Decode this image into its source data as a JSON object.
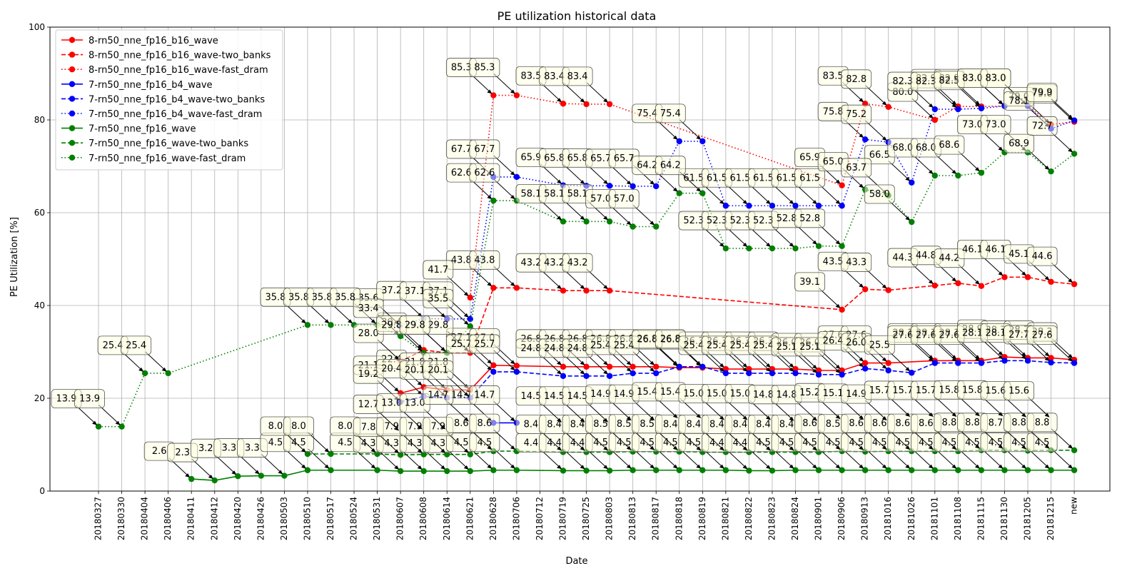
{
  "chart_data": {
    "type": "line",
    "title": "PE utilization historical data",
    "xlabel": "Date",
    "ylabel": "PE Utilization [%]",
    "ylim": [
      0,
      100
    ],
    "yticks": [
      0,
      20,
      40,
      60,
      80,
      100
    ],
    "grid": true,
    "legend_position": "top-left",
    "categories": [
      "20180327",
      "20180330",
      "20180404",
      "20180406",
      "20180411",
      "20180412",
      "20180420",
      "20180426",
      "20180503",
      "20180510",
      "20180517",
      "20180524",
      "20180531",
      "20180607",
      "20180608",
      "20180614",
      "20180621",
      "20180628",
      "20180706",
      "20180712",
      "20180719",
      "20180725",
      "20180803",
      "20180813",
      "20180817",
      "20180818",
      "20180819",
      "20180821",
      "20180822",
      "20180823",
      "20180824",
      "20180901",
      "20180906",
      "20180913",
      "20181016",
      "20181026",
      "20181101",
      "20181108",
      "20181115",
      "20181130",
      "20181205",
      "20181215",
      "new"
    ],
    "series": [
      {
        "name": "8-rn50_nne_fp16_b16_wave",
        "color": "#ff0000",
        "dash": "solid",
        "points": [
          [
            13,
            21.1
          ],
          [
            14,
            22.4
          ],
          [
            15,
            21.8
          ],
          [
            16,
            21.8
          ],
          [
            17,
            27.1
          ],
          [
            18,
            27.0
          ],
          [
            20,
            26.8
          ],
          [
            21,
            26.8
          ],
          [
            22,
            26.8
          ],
          [
            23,
            26.8
          ],
          [
            24,
            26.8
          ],
          [
            25,
            26.6
          ],
          [
            26,
            26.6
          ],
          [
            27,
            26.3
          ],
          [
            28,
            26.3
          ],
          [
            29,
            26.3
          ],
          [
            30,
            26.3
          ],
          [
            31,
            26.0
          ],
          [
            32,
            26.0
          ],
          [
            33,
            27.6
          ],
          [
            34,
            27.6
          ],
          [
            36,
            28.1
          ],
          [
            37,
            28.1
          ],
          [
            38,
            28.1
          ],
          [
            39,
            28.9
          ],
          [
            40,
            28.7
          ],
          [
            41,
            28.7
          ],
          [
            42,
            28.3
          ]
        ]
      },
      {
        "name": "8-rn50_nne_fp16_b16_wave-two_banks",
        "color": "#ff0000",
        "dash": "dashed",
        "points": [
          [
            13,
            28.0
          ],
          [
            14,
            30.4
          ],
          [
            15,
            29.8
          ],
          [
            16,
            29.8
          ],
          [
            17,
            43.8
          ],
          [
            18,
            43.8
          ],
          [
            20,
            43.2
          ],
          [
            21,
            43.2
          ],
          [
            22,
            43.2
          ],
          [
            32,
            39.1
          ],
          [
            33,
            43.5
          ],
          [
            34,
            43.3
          ],
          [
            36,
            44.3
          ],
          [
            37,
            44.8
          ],
          [
            38,
            44.2
          ],
          [
            39,
            46.1
          ],
          [
            40,
            46.1
          ],
          [
            41,
            45.1
          ],
          [
            42,
            44.6
          ]
        ]
      },
      {
        "name": "8-rn50_nne_fp16_b16_wave-fast_dram",
        "color": "#ff0000",
        "dash": "dotted",
        "points": [
          [
            16,
            41.7
          ],
          [
            17,
            85.3
          ],
          [
            18,
            85.3
          ],
          [
            20,
            83.5
          ],
          [
            21,
            83.4
          ],
          [
            22,
            83.4
          ],
          [
            32,
            65.9
          ],
          [
            33,
            83.5
          ],
          [
            34,
            82.8
          ],
          [
            36,
            80.0
          ],
          [
            37,
            82.9
          ],
          [
            38,
            82.9
          ],
          [
            39,
            83.0
          ],
          [
            40,
            83.0
          ],
          [
            41,
            79.0
          ],
          [
            42,
            79.6
          ]
        ]
      },
      {
        "name": "7-rn50_nne_fp16_b4_wave",
        "color": "#0000ff",
        "dash": "solid",
        "points": [
          [
            17,
            14.7
          ],
          [
            18,
            14.7
          ]
        ]
      },
      {
        "name": "7-rn50_nne_fp16_b4_wave-two_banks",
        "color": "#0000ff",
        "dash": "dashed",
        "points": [
          [
            13,
            19.2
          ],
          [
            14,
            20.4
          ],
          [
            15,
            20.1
          ],
          [
            16,
            20.1
          ],
          [
            17,
            25.7
          ],
          [
            18,
            25.7
          ],
          [
            20,
            24.8
          ],
          [
            21,
            24.8
          ],
          [
            22,
            24.8
          ],
          [
            23,
            25.4
          ],
          [
            24,
            25.4
          ],
          [
            25,
            26.8
          ],
          [
            26,
            26.8
          ],
          [
            27,
            25.4
          ],
          [
            28,
            25.4
          ],
          [
            29,
            25.4
          ],
          [
            30,
            25.4
          ],
          [
            31,
            25.1
          ],
          [
            32,
            25.1
          ],
          [
            33,
            26.4
          ],
          [
            34,
            26.0
          ],
          [
            35,
            25.5
          ],
          [
            36,
            27.6
          ],
          [
            37,
            27.6
          ],
          [
            38,
            27.6
          ],
          [
            39,
            28.1
          ],
          [
            40,
            28.1
          ],
          [
            41,
            27.7
          ],
          [
            42,
            27.6
          ]
        ]
      },
      {
        "name": "7-rn50_nne_fp16_b4_wave-fast_dram",
        "color": "#0000ff",
        "dash": "dotted",
        "points": [
          [
            13,
            35.6
          ],
          [
            14,
            37.2
          ],
          [
            15,
            37.1
          ],
          [
            16,
            37.1
          ],
          [
            17,
            67.7
          ],
          [
            18,
            67.7
          ],
          [
            20,
            65.9
          ],
          [
            21,
            65.8
          ],
          [
            22,
            65.8
          ],
          [
            23,
            65.7
          ],
          [
            24,
            65.7
          ],
          [
            25,
            75.4
          ],
          [
            26,
            75.4
          ],
          [
            27,
            61.5
          ],
          [
            28,
            61.5
          ],
          [
            29,
            61.5
          ],
          [
            30,
            61.5
          ],
          [
            31,
            61.5
          ],
          [
            32,
            61.5
          ],
          [
            33,
            75.8
          ],
          [
            34,
            75.2
          ],
          [
            35,
            66.5
          ],
          [
            36,
            82.3
          ],
          [
            37,
            82.3
          ],
          [
            38,
            82.5
          ],
          [
            39,
            83.0
          ],
          [
            40,
            83.0
          ],
          [
            41,
            78.1
          ],
          [
            42,
            79.9
          ]
        ]
      },
      {
        "name": "7-rn50_nne_fp16_wave",
        "color": "#008000",
        "dash": "solid",
        "points": [
          [
            4,
            2.6
          ],
          [
            5,
            2.3
          ],
          [
            6,
            3.2
          ],
          [
            7,
            3.3
          ],
          [
            8,
            3.3
          ],
          [
            9,
            4.5
          ],
          [
            10,
            4.5
          ],
          [
            12,
            4.5
          ],
          [
            13,
            4.3
          ],
          [
            14,
            4.3
          ],
          [
            15,
            4.3
          ],
          [
            16,
            4.3
          ],
          [
            17,
            4.5
          ],
          [
            18,
            4.5
          ],
          [
            20,
            4.4
          ],
          [
            21,
            4.4
          ],
          [
            22,
            4.4
          ],
          [
            23,
            4.5
          ],
          [
            24,
            4.5
          ],
          [
            25,
            4.5
          ],
          [
            26,
            4.5
          ],
          [
            27,
            4.5
          ],
          [
            28,
            4.4
          ],
          [
            29,
            4.4
          ],
          [
            30,
            4.5
          ],
          [
            31,
            4.5
          ],
          [
            32,
            4.5
          ],
          [
            33,
            4.5
          ],
          [
            34,
            4.5
          ],
          [
            35,
            4.5
          ],
          [
            36,
            4.5
          ],
          [
            37,
            4.5
          ],
          [
            38,
            4.5
          ],
          [
            39,
            4.5
          ],
          [
            40,
            4.5
          ],
          [
            41,
            4.5
          ],
          [
            42,
            4.5
          ]
        ]
      },
      {
        "name": "7-rn50_nne_fp16_wave-two_banks",
        "color": "#008000",
        "dash": "dashed",
        "points": [
          [
            9,
            8.0
          ],
          [
            10,
            8.0
          ],
          [
            12,
            8.0
          ],
          [
            13,
            7.8
          ],
          [
            14,
            7.9
          ],
          [
            15,
            7.9
          ],
          [
            16,
            7.9
          ],
          [
            17,
            8.6
          ],
          [
            18,
            8.6
          ],
          [
            20,
            8.4
          ],
          [
            21,
            8.4
          ],
          [
            22,
            8.4
          ],
          [
            23,
            8.5
          ],
          [
            24,
            8.5
          ],
          [
            25,
            8.5
          ],
          [
            26,
            8.4
          ],
          [
            27,
            8.4
          ],
          [
            28,
            8.4
          ],
          [
            29,
            8.4
          ],
          [
            30,
            8.4
          ],
          [
            31,
            8.4
          ],
          [
            32,
            8.6
          ],
          [
            33,
            8.5
          ],
          [
            34,
            8.6
          ],
          [
            35,
            8.6
          ],
          [
            36,
            8.6
          ],
          [
            37,
            8.6
          ],
          [
            38,
            8.8
          ],
          [
            39,
            8.8
          ],
          [
            40,
            8.7
          ],
          [
            41,
            8.8
          ],
          [
            42,
            8.8
          ]
        ]
      },
      {
        "name": "7-rn50_nne_fp16_wave-fast_dram",
        "color": "#008000",
        "dash": "dotted",
        "points": [
          [
            0,
            13.9
          ],
          [
            1,
            13.9
          ],
          [
            2,
            25.4
          ],
          [
            3,
            25.4
          ],
          [
            9,
            35.8
          ],
          [
            10,
            35.8
          ],
          [
            11,
            35.8
          ],
          [
            12,
            35.8
          ],
          [
            13,
            33.4
          ],
          [
            14,
            29.8
          ],
          [
            15,
            29.8
          ],
          [
            16,
            35.5
          ],
          [
            17,
            62.6
          ],
          [
            18,
            62.6
          ],
          [
            20,
            58.1
          ],
          [
            21,
            58.1
          ],
          [
            22,
            58.1
          ],
          [
            23,
            57.0
          ],
          [
            24,
            57.0
          ],
          [
            25,
            64.2
          ],
          [
            26,
            64.2
          ],
          [
            27,
            52.3
          ],
          [
            28,
            52.3
          ],
          [
            29,
            52.3
          ],
          [
            30,
            52.3
          ],
          [
            31,
            52.8
          ],
          [
            32,
            52.8
          ],
          [
            33,
            65.0
          ],
          [
            34,
            63.7
          ],
          [
            35,
            58.0
          ],
          [
            36,
            68.0
          ],
          [
            37,
            68.0
          ],
          [
            38,
            68.6
          ],
          [
            39,
            73.0
          ],
          [
            40,
            73.0
          ],
          [
            41,
            68.9
          ],
          [
            42,
            72.7
          ]
        ]
      }
    ],
    "extra_annotations": [
      {
        "x": 13,
        "text": "12.7",
        "y": 12.7
      },
      {
        "x": 14,
        "text": "13.0",
        "y": 13.0
      },
      {
        "x": 15,
        "text": "13.0",
        "y": 13.0
      },
      {
        "x": 16,
        "text": "14.7",
        "y": 14.7
      },
      {
        "x": 20,
        "text": "14.5",
        "y": 14.5
      },
      {
        "x": 21,
        "text": "14.5",
        "y": 14.5
      },
      {
        "x": 22,
        "text": "14.5",
        "y": 14.5
      },
      {
        "x": 23,
        "text": "14.9",
        "y": 14.9
      },
      {
        "x": 24,
        "text": "14.9",
        "y": 14.9
      },
      {
        "x": 25,
        "text": "15.4",
        "y": 15.4
      },
      {
        "x": 26,
        "text": "15.4",
        "y": 15.4
      },
      {
        "x": 27,
        "text": "15.0",
        "y": 15.0
      },
      {
        "x": 28,
        "text": "15.0",
        "y": 15.0
      },
      {
        "x": 29,
        "text": "15.0",
        "y": 15.0
      },
      {
        "x": 30,
        "text": "14.8",
        "y": 14.8
      },
      {
        "x": 31,
        "text": "14.8",
        "y": 14.8
      },
      {
        "x": 32,
        "text": "15.2",
        "y": 15.2
      },
      {
        "x": 33,
        "text": "15.1",
        "y": 15.1
      },
      {
        "x": 34,
        "text": "14.9",
        "y": 14.9
      },
      {
        "x": 35,
        "text": "15.7",
        "y": 15.7
      },
      {
        "x": 36,
        "text": "15.7",
        "y": 15.7
      },
      {
        "x": 37,
        "text": "15.7",
        "y": 15.7
      },
      {
        "x": 38,
        "text": "15.8",
        "y": 15.8
      },
      {
        "x": 39,
        "text": "15.8",
        "y": 15.8
      },
      {
        "x": 40,
        "text": "15.6",
        "y": 15.6
      },
      {
        "x": 41,
        "text": "15.6",
        "y": 15.6
      }
    ]
  }
}
